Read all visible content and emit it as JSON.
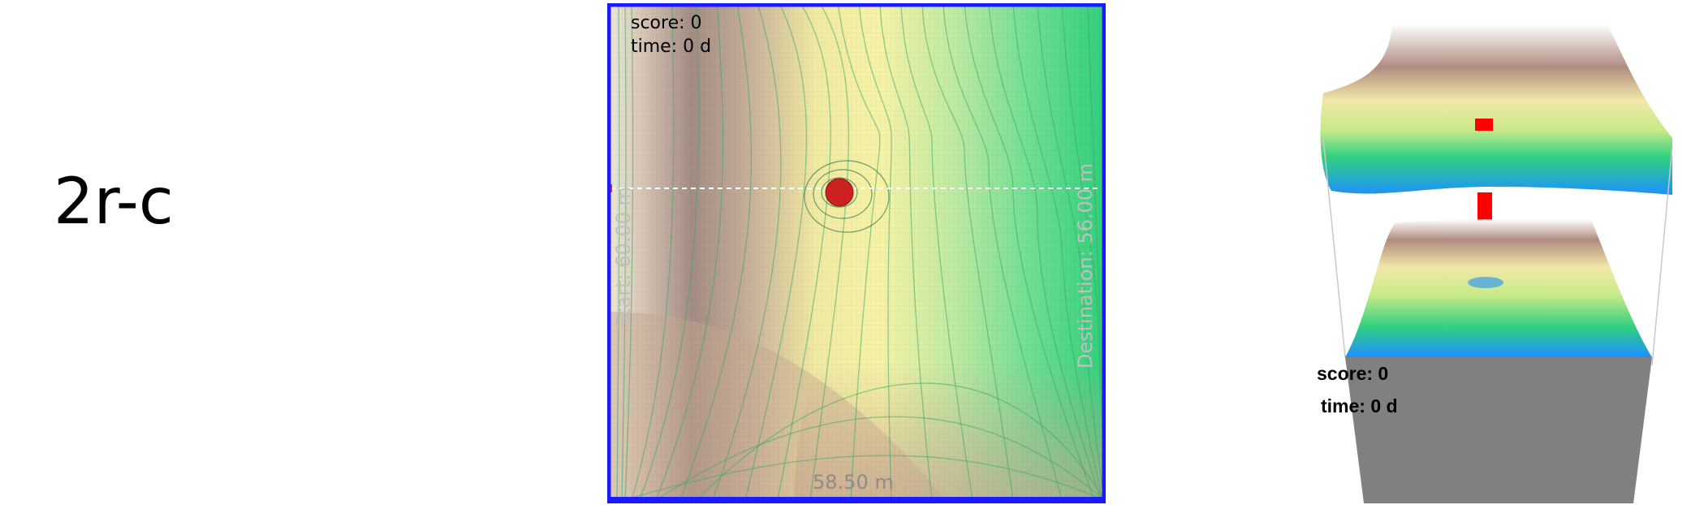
{
  "case_label": "2r-c",
  "map": {
    "score_text": "score: 0",
    "time_text": "time: 0 d",
    "start_label": "Start: 60.00 m",
    "destination_label": "Destination: 56.00 m",
    "width_label": "58.50 m",
    "colors": {
      "border": "#1a1aff",
      "agent": "#cc2222",
      "start_marker": "#ff2020",
      "terrain_low": "#2ecf7a",
      "terrain_mid": "#f4f0a0",
      "terrain_high": "#a88a80"
    },
    "icons": [
      "agent-marker-icon",
      "start-marker-icon"
    ]
  },
  "view3d": {
    "score_text": "score: 0",
    "time_text": "time: 0 d",
    "colors": {
      "column": "#ff0000",
      "base": "#808080",
      "water": "#1e90ff"
    }
  }
}
